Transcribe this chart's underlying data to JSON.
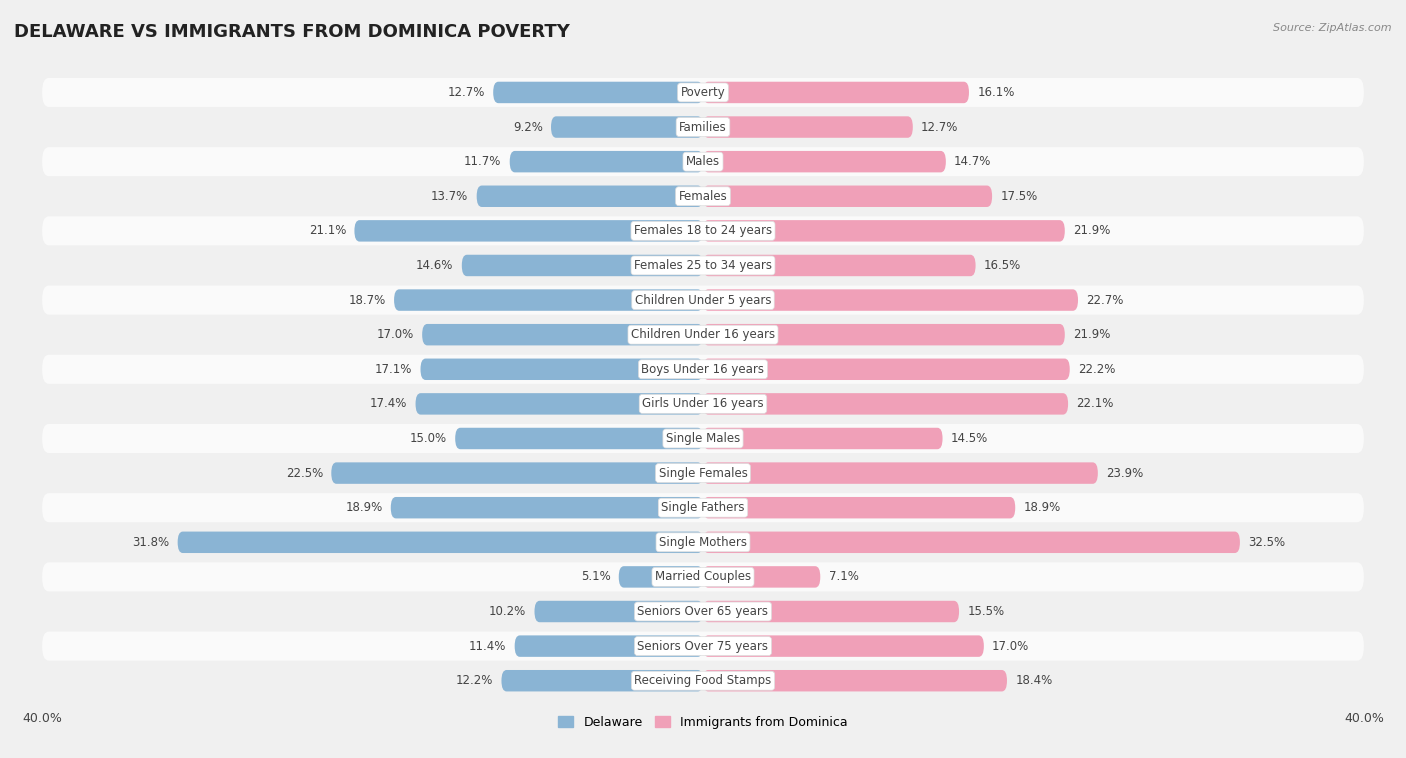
{
  "title": "DELAWARE VS IMMIGRANTS FROM DOMINICA POVERTY",
  "source": "Source: ZipAtlas.com",
  "categories": [
    "Poverty",
    "Families",
    "Males",
    "Females",
    "Females 18 to 24 years",
    "Females 25 to 34 years",
    "Children Under 5 years",
    "Children Under 16 years",
    "Boys Under 16 years",
    "Girls Under 16 years",
    "Single Males",
    "Single Females",
    "Single Fathers",
    "Single Mothers",
    "Married Couples",
    "Seniors Over 65 years",
    "Seniors Over 75 years",
    "Receiving Food Stamps"
  ],
  "delaware_values": [
    12.7,
    9.2,
    11.7,
    13.7,
    21.1,
    14.6,
    18.7,
    17.0,
    17.1,
    17.4,
    15.0,
    22.5,
    18.9,
    31.8,
    5.1,
    10.2,
    11.4,
    12.2
  ],
  "dominica_values": [
    16.1,
    12.7,
    14.7,
    17.5,
    21.9,
    16.5,
    22.7,
    21.9,
    22.2,
    22.1,
    14.5,
    23.9,
    18.9,
    32.5,
    7.1,
    15.5,
    17.0,
    18.4
  ],
  "delaware_color": "#8ab4d4",
  "dominica_color": "#f0a0b8",
  "row_color_even": "#f0f0f0",
  "row_color_odd": "#fafafa",
  "background_color": "#f0f0f0",
  "label_color": "#444444",
  "value_color": "#444444",
  "title_color": "#222222",
  "xlim": 40.0,
  "legend_labels": [
    "Delaware",
    "Immigrants from Dominica"
  ]
}
